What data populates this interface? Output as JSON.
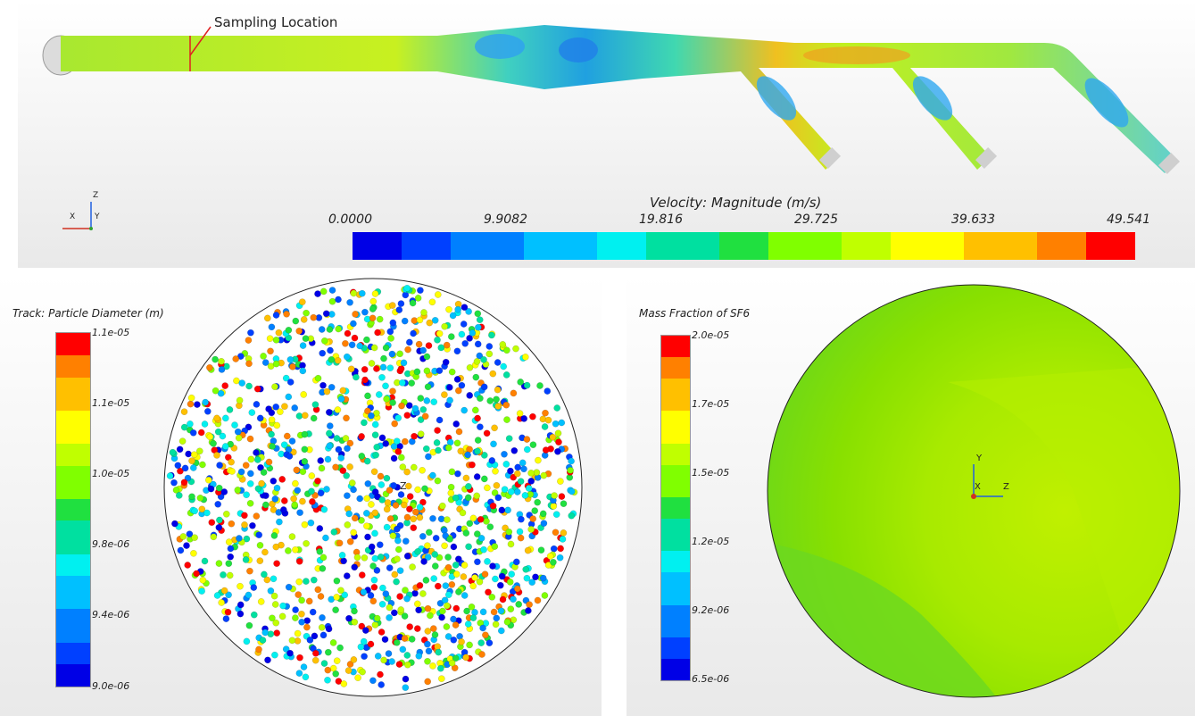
{
  "top": {
    "annotation": "Sampling Location",
    "legend_title": "Velocity: Magnitude (m/s)",
    "ticks": [
      "0.0000",
      "9.9082",
      "19.816",
      "29.725",
      "39.633",
      "49.541"
    ],
    "axes": {
      "x": "X",
      "y": "Y",
      "z": "Z"
    }
  },
  "left": {
    "legend_title": "Track: Particle Diameter (m)",
    "ticks": [
      "1.1e-05",
      "1.1e-05",
      "1.0e-05",
      "9.8e-06",
      "9.4e-06",
      "9.0e-06"
    ],
    "axis_label": "Z"
  },
  "right": {
    "legend_title": "Mass Fraction of SF6",
    "ticks": [
      "2.0e-05",
      "1.7e-05",
      "1.5e-05",
      "1.2e-05",
      "9.2e-06",
      "6.5e-06"
    ],
    "axes": {
      "x": "X",
      "y": "Y",
      "z": "Z"
    }
  },
  "colors": {
    "scale": [
      "#0000e6",
      "#0040ff",
      "#0080ff",
      "#00c0ff",
      "#00f0f0",
      "#00e0a0",
      "#20e040",
      "#80ff00",
      "#c0ff00",
      "#ffff00",
      "#ffc000",
      "#ff8000",
      "#ff0000"
    ],
    "field": "#7fe01a",
    "field_light": "#b4f000"
  }
}
